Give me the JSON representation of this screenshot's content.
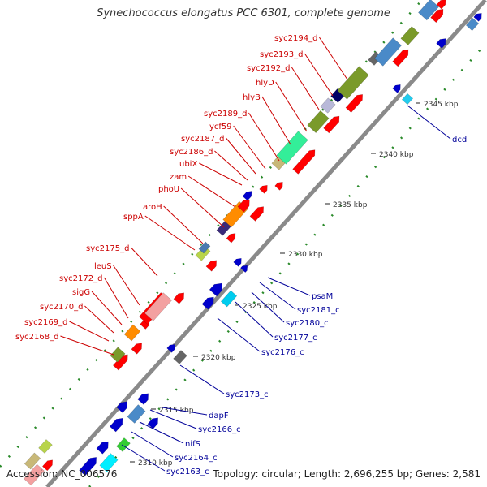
{
  "title": "Synechococcus elongatus PCC 6301, complete genome",
  "footer": {
    "accession": "Accession: NC_006576",
    "summary": "Topology: circular; Length: 2,696,255 bp; Genes: 2,581"
  },
  "colors": {
    "forward_label": "#cc0000",
    "reverse_label": "#000099",
    "backbone": "#888888",
    "tick": "#2a8a2a"
  },
  "kbp_ticks": [
    {
      "label": "2310 kbp",
      "pos": 2310
    },
    {
      "label": "2315 kbp",
      "pos": 2315
    },
    {
      "label": "2320 kbp",
      "pos": 2320
    },
    {
      "label": "2325 kbp",
      "pos": 2325
    },
    {
      "label": "2330 kbp",
      "pos": 2330
    },
    {
      "label": "2335 kbp",
      "pos": 2335
    },
    {
      "label": "2340 kbp",
      "pos": 2340
    },
    {
      "label": "2345 kbp",
      "pos": 2345
    }
  ],
  "forward_genes": [
    {
      "label": "syc2168_d"
    },
    {
      "label": "syc2169_d"
    },
    {
      "label": "syc2170_d"
    },
    {
      "label": "sigG"
    },
    {
      "label": "syc2172_d"
    },
    {
      "label": "leuS"
    },
    {
      "label": "syc2175_d"
    },
    {
      "label": "sppA"
    },
    {
      "label": "aroH"
    },
    {
      "label": "phoU"
    },
    {
      "label": "zam"
    },
    {
      "label": "ubiX"
    },
    {
      "label": "syc2186_d"
    },
    {
      "label": "syc2187_d"
    },
    {
      "label": "ycf59"
    },
    {
      "label": "syc2189_d"
    },
    {
      "label": "hlyB"
    },
    {
      "label": "hlyD"
    },
    {
      "label": "syc2192_d"
    },
    {
      "label": "syc2193_d"
    },
    {
      "label": "syc2194_d"
    }
  ],
  "reverse_genes": [
    {
      "label": "syc2163_c"
    },
    {
      "label": "syc2164_c"
    },
    {
      "label": "nifS"
    },
    {
      "label": "syc2166_c"
    },
    {
      "label": "dapF"
    },
    {
      "label": "syc2173_c"
    },
    {
      "label": "syc2176_c"
    },
    {
      "label": "syc2177_c"
    },
    {
      "label": "syc2180_c"
    },
    {
      "label": "syc2181_c"
    },
    {
      "label": "psaM"
    },
    {
      "label": "dcd"
    }
  ]
}
